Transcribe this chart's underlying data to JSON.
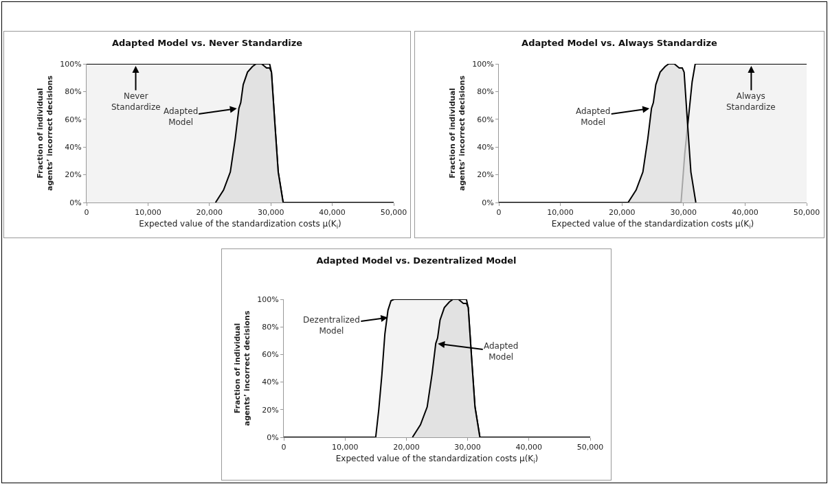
{
  "chart_data": [
    {
      "type": "area",
      "title": "Adapted Model vs. Never Standardize",
      "xlabel": "Expected value of the standardization costs μ(K$_{i}$)",
      "ylabel": "Fraction of individual agents’ incorrect decisions",
      "xlim": [
        0,
        50000
      ],
      "xticks": [
        {
          "value": 0,
          "label": "0"
        },
        {
          "value": 10000,
          "label": "10,000"
        },
        {
          "value": 20000,
          "label": "20,000"
        },
        {
          "value": 30000,
          "label": "30,000"
        },
        {
          "value": 40000,
          "label": "40,000"
        },
        {
          "value": 50000,
          "label": "50,000"
        }
      ],
      "ylim": [
        0,
        100
      ],
      "yticks": [
        {
          "value": 0,
          "label": "0%"
        },
        {
          "value": 20,
          "label": "20%"
        },
        {
          "value": 40,
          "label": "40%"
        },
        {
          "value": 60,
          "label": "60%"
        },
        {
          "value": 80,
          "label": "80%"
        },
        {
          "value": 100,
          "label": "100%"
        }
      ],
      "grid": false,
      "series": [
        {
          "color": "#efefef",
          "x": [
            0,
            29800,
            30100,
            30700,
            31200,
            32000,
            50000
          ],
          "values": [
            100,
            100,
            94,
            54,
            22,
            0,
            0
          ]
        },
        {
          "color": "#dcdcdc",
          "x": [
            21000,
            22300,
            23400,
            24200,
            24800,
            25100,
            25500,
            26200,
            27000,
            27600,
            28500,
            29300,
            29800,
            30100,
            30700,
            31200,
            32000
          ],
          "values": [
            0,
            9,
            22,
            46,
            68,
            72,
            85,
            94,
            98,
            100,
            100,
            97,
            97,
            94,
            54,
            22,
            0
          ]
        }
      ],
      "annotations": [
        {
          "text": "Never Standardize",
          "x": 8000,
          "y": 100
        },
        {
          "text": "Adapted Model",
          "x": 24800,
          "y": 68
        }
      ]
    },
    {
      "type": "area",
      "title": "Adapted Model vs. Always Standardize",
      "xlabel": "Expected value of the standardization costs μ(K$_{i}$)",
      "ylabel": "Fraction of individual agents’ incorrect decisions",
      "xlim": [
        0,
        50000
      ],
      "xticks": [
        {
          "value": 0,
          "label": "0"
        },
        {
          "value": 10000,
          "label": "10,000"
        },
        {
          "value": 20000,
          "label": "20,000"
        },
        {
          "value": 30000,
          "label": "30,000"
        },
        {
          "value": 40000,
          "label": "40,000"
        },
        {
          "value": 50000,
          "label": "50,000"
        }
      ],
      "ylim": [
        0,
        100
      ],
      "yticks": [
        {
          "value": 0,
          "label": "0%"
        },
        {
          "value": 20,
          "label": "20%"
        },
        {
          "value": 40,
          "label": "40%"
        },
        {
          "value": 60,
          "label": "60%"
        },
        {
          "value": 80,
          "label": "80%"
        },
        {
          "value": 100,
          "label": "100%"
        }
      ],
      "grid": false,
      "series": [
        {
          "color": "#efefef",
          "x": [
            0,
            29600,
            30200,
            30800,
            31400,
            31900,
            50000
          ],
          "values": [
            0,
            0,
            35,
            61,
            87,
            100,
            100
          ]
        },
        {
          "color": "#dcdcdc",
          "x": [
            21000,
            22300,
            23400,
            24200,
            24800,
            25100,
            25500,
            26200,
            27000,
            27600,
            28500,
            29300,
            29800,
            30100,
            30700,
            31200,
            32000
          ],
          "values": [
            0,
            9,
            22,
            46,
            68,
            72,
            85,
            94,
            98,
            100,
            100,
            97,
            97,
            94,
            54,
            22,
            0
          ]
        }
      ],
      "annotations": [
        {
          "text": "Adapted Model",
          "x": 24800,
          "y": 68
        },
        {
          "text": "Always Standardize",
          "x": 41000,
          "y": 100
        }
      ]
    },
    {
      "type": "area",
      "title": "Adapted Model vs. Dezentralized Model",
      "xlabel": "Expected value of the standardization costs μ(K$_{i}$)",
      "ylabel": "Fraction of individual agents’ incorrect decisions",
      "xlim": [
        0,
        50000
      ],
      "xticks": [
        {
          "value": 0,
          "label": "0"
        },
        {
          "value": 10000,
          "label": "10,000"
        },
        {
          "value": 20000,
          "label": "20,000"
        },
        {
          "value": 30000,
          "label": "30,000"
        },
        {
          "value": 40000,
          "label": "40,000"
        },
        {
          "value": 50000,
          "label": "50,000"
        }
      ],
      "ylim": [
        0,
        100
      ],
      "yticks": [
        {
          "value": 0,
          "label": "0%"
        },
        {
          "value": 20,
          "label": "20%"
        },
        {
          "value": 40,
          "label": "40%"
        },
        {
          "value": 60,
          "label": "60%"
        },
        {
          "value": 80,
          "label": "80%"
        },
        {
          "value": 100,
          "label": "100%"
        }
      ],
      "grid": false,
      "series": [
        {
          "color": "#efefef",
          "x": [
            0,
            15000,
            15500,
            16000,
            16500,
            17000,
            17500,
            18000,
            29800,
            30100,
            30700,
            31200,
            32000,
            50000
          ],
          "values": [
            0,
            0,
            20,
            45,
            75,
            92,
            99,
            100,
            100,
            94,
            54,
            22,
            0,
            0
          ]
        },
        {
          "color": "#dcdcdc",
          "x": [
            21000,
            22300,
            23400,
            24200,
            24800,
            25100,
            25500,
            26200,
            27000,
            27600,
            28500,
            29300,
            29800,
            30100,
            30700,
            31200,
            32000
          ],
          "values": [
            0,
            9,
            22,
            46,
            68,
            72,
            85,
            94,
            98,
            100,
            100,
            97,
            97,
            94,
            54,
            22,
            0
          ]
        }
      ],
      "annotations": [
        {
          "text": "Dezentralized Model",
          "x": 17300,
          "y": 87
        },
        {
          "text": "Adapted Model",
          "x": 24800,
          "y": 68
        }
      ]
    }
  ]
}
